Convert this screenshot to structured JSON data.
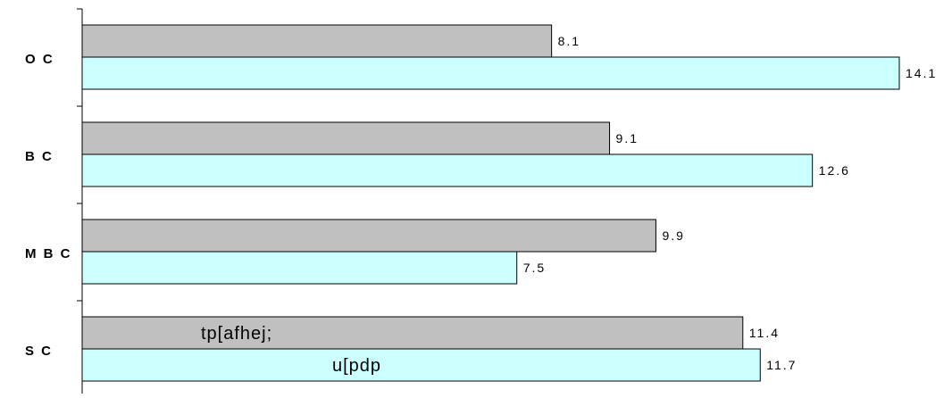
{
  "chart_data": {
    "type": "bar",
    "orientation": "horizontal",
    "categories": [
      "O C",
      "B C",
      "M B C",
      "S C"
    ],
    "series": [
      {
        "values": [
          8.1,
          9.1,
          9.9,
          11.4
        ],
        "color": "#c0c0c0"
      },
      {
        "values": [
          14.1,
          12.6,
          7.5,
          11.7
        ],
        "color": "#ccffff"
      }
    ],
    "data_labels": [
      "8.1",
      "14.1",
      "9.1",
      "12.6",
      "9.9",
      "7.5",
      "11.4",
      "11.7"
    ],
    "in_bar_text": [
      "tp[afhej;",
      "u[pdp"
    ],
    "xlim": [
      0,
      14.1
    ],
    "grid": false,
    "legend": "none",
    "border_color": "#000000"
  }
}
